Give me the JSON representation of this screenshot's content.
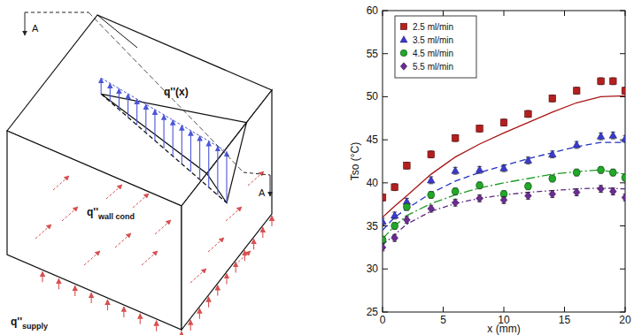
{
  "diagram": {
    "section_left": "A",
    "section_right": "A",
    "flux_x": "q''(x)",
    "flux_wall": {
      "main": "q''",
      "sub": "wall cond"
    },
    "flux_supply": {
      "main": "q''",
      "sub": "supply"
    }
  },
  "chart_data": {
    "type": "scatter",
    "xlabel": "x (mm)",
    "ylabel": "Tso (°C)",
    "xlim": [
      0,
      20
    ],
    "ylim": [
      25,
      60
    ],
    "xticks": [
      0,
      5,
      10,
      15,
      20
    ],
    "yticks": [
      25,
      30,
      35,
      40,
      45,
      50,
      55,
      60
    ],
    "grid": false,
    "legend": "upper left",
    "series": [
      {
        "name": "2.5 ml/min",
        "color": "#b3201f",
        "marker": "square",
        "x": [
          0,
          1,
          2,
          4,
          6,
          8,
          10,
          12,
          14,
          16,
          18,
          19,
          20
        ],
        "values": [
          38.3,
          39.5,
          42,
          43.3,
          45.2,
          46.3,
          47,
          48,
          49.8,
          50.7,
          51.8,
          51.8,
          50.7
        ],
        "errors": [
          0.4,
          0.4,
          0.4,
          0.4,
          0.4,
          0.4,
          0.4,
          0.4,
          0.4,
          0.4,
          0.4,
          0.4,
          0.4
        ]
      },
      {
        "name": "3.5 ml/min",
        "color": "#3a3ad0",
        "marker": "triangle",
        "x": [
          0,
          1,
          2,
          4,
          6,
          8,
          10,
          12,
          14,
          16,
          18,
          19,
          20
        ],
        "values": [
          35.5,
          36.2,
          37.8,
          40.3,
          41.4,
          41.5,
          41.7,
          42.6,
          43.3,
          44.4,
          45.4,
          45.5,
          45.1
        ],
        "errors": [
          0.4,
          0.4,
          0.4,
          0.4,
          0.4,
          0.4,
          0.4,
          0.4,
          0.4,
          0.4,
          0.4,
          0.4,
          0.4
        ]
      },
      {
        "name": "4.5 ml/min",
        "color": "#22a82a",
        "marker": "circle",
        "x": [
          0,
          1,
          2,
          4,
          6,
          8,
          10,
          12,
          14,
          16,
          18,
          19,
          20
        ],
        "values": [
          33.4,
          35,
          37.2,
          38.6,
          39,
          39.7,
          38.7,
          39.6,
          40.5,
          41.2,
          41.5,
          41.2,
          40.6
        ],
        "errors": [
          0.4,
          0.4,
          0.4,
          0.4,
          0.4,
          0.4,
          0.4,
          0.4,
          0.4,
          0.4,
          0.4,
          0.4,
          0.4
        ]
      },
      {
        "name": "5.5 ml/min",
        "color": "#6b2c91",
        "marker": "diamond",
        "x": [
          0,
          1,
          2,
          4,
          6,
          8,
          10,
          12,
          14,
          16,
          18,
          19,
          20
        ],
        "values": [
          32.5,
          33.6,
          35.7,
          37,
          37.7,
          38.2,
          38,
          38.5,
          38.7,
          38.9,
          39.3,
          39,
          38.3
        ],
        "errors": [
          0.4,
          0.4,
          0.4,
          0.4,
          0.4,
          0.4,
          0.4,
          0.4,
          0.4,
          0.4,
          0.4,
          0.4,
          0.4
        ]
      },
      {
        "type": "line",
        "color": "#a81414",
        "line_style": "solid",
        "x": [
          0,
          1,
          2,
          4,
          6,
          8,
          10,
          12,
          14,
          16,
          18,
          20
        ],
        "values": [
          36,
          37.3,
          38.5,
          41,
          43,
          44.5,
          45.8,
          47,
          48.2,
          49.3,
          50,
          50.1
        ]
      },
      {
        "type": "line",
        "color": "#2231c0",
        "line_style": "dashed",
        "x": [
          0,
          1,
          2,
          4,
          6,
          8,
          10,
          12,
          14,
          16,
          18,
          20
        ],
        "values": [
          34.5,
          36,
          37,
          38.8,
          40.2,
          41.2,
          42,
          42.8,
          43.5,
          44.2,
          44.7,
          44.7
        ]
      },
      {
        "type": "line",
        "color": "#1f9a26",
        "line_style": "dashdot",
        "x": [
          0,
          1,
          2,
          4,
          6,
          8,
          10,
          12,
          14,
          16,
          18,
          20
        ],
        "values": [
          33.5,
          35,
          36.2,
          37.6,
          38.6,
          39.4,
          40,
          40.5,
          41,
          41.3,
          41.5,
          41
        ]
      },
      {
        "type": "line",
        "color": "#5e2785",
        "line_style": "longdashdot",
        "x": [
          0,
          1,
          2,
          4,
          6,
          8,
          10,
          12,
          14,
          16,
          18,
          20
        ],
        "values": [
          32.8,
          34,
          35.2,
          36.7,
          37.6,
          38.2,
          38.6,
          38.9,
          39.1,
          39.3,
          39.4,
          39.3
        ]
      }
    ]
  }
}
